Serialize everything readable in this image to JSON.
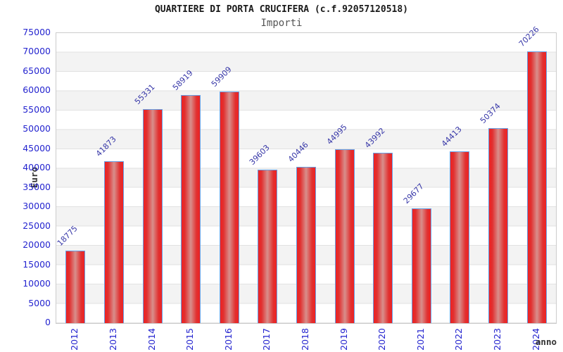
{
  "title": "QUARTIERE DI PORTA CRUCIFERA (c.f.92057120518)",
  "subtitle": "Importi",
  "chart_data": {
    "type": "bar",
    "title": "QUARTIERE DI PORTA CRUCIFERA (c.f.92057120518)",
    "subtitle": "Importi",
    "categories": [
      "2012",
      "2013",
      "2014",
      "2015",
      "2016",
      "2017",
      "2018",
      "2019",
      "2020",
      "2021",
      "2022",
      "2023",
      "2024"
    ],
    "values": [
      18775,
      41873,
      55331,
      58919,
      59909,
      39603,
      40446,
      44995,
      43992,
      29677,
      44413,
      50374,
      70226
    ],
    "xlabel": "anno",
    "ylabel": "Euro",
    "ylim": [
      0,
      75000
    ],
    "ytick_step": 5000,
    "grid": true,
    "legend_position": "none",
    "colors": {
      "bar_fill": "#ee2222",
      "bar_fill_center": "#d88f8c",
      "bar_border": "#66a0e6",
      "tick_text": "#2424cf",
      "value_label_text": "#3838a8",
      "band_alt": "#f3f3f3",
      "gridline": "#e2e2e2",
      "plot_border": "#cccccc",
      "title_text": "#1a1a1a",
      "subtitle_text": "#555555",
      "axis_label_text": "#333333"
    }
  }
}
